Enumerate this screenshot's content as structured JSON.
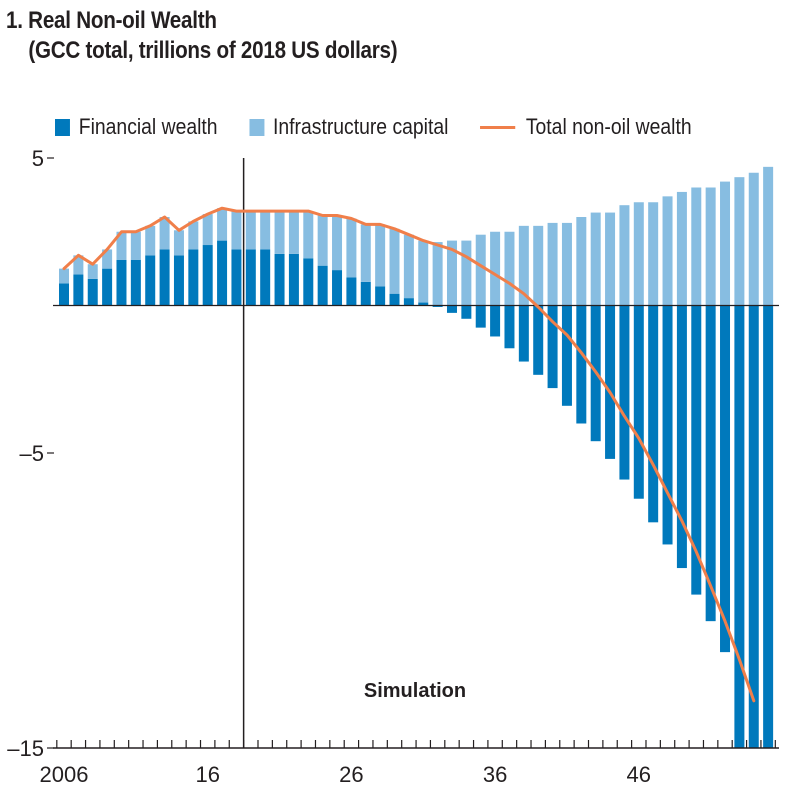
{
  "title": {
    "line1": "1. Real Non-oil Wealth",
    "line2": "(GCC total, trillions of 2018 US dollars)"
  },
  "legend": {
    "items": [
      {
        "label": "Financial wealth",
        "type": "box",
        "color": "#0079bc"
      },
      {
        "label": "Infrastructure capital",
        "type": "box",
        "color": "#87bde1"
      },
      {
        "label": "Total non-oil wealth",
        "type": "line",
        "color": "#f07f4a"
      }
    ]
  },
  "annotation": {
    "simulation_label": "Simulation",
    "simulation_start_year": 2018.5
  },
  "chart_data": {
    "type": "bar",
    "stacked": true,
    "title": "1. Real Non-oil Wealth (GCC total, trillions of 2018 US dollars)",
    "xlabel": "",
    "ylabel": "",
    "ylim": [
      -15,
      5
    ],
    "yticks": [
      5,
      0,
      -5,
      -15
    ],
    "ytick_labels": [
      "5",
      "",
      "–5",
      "–15"
    ],
    "xlim": [
      2006,
      2055
    ],
    "xtick_labels": [
      {
        "year": 2006,
        "label": "2006"
      },
      {
        "year": 2016,
        "label": "16"
      },
      {
        "year": 2026,
        "label": "26"
      },
      {
        "year": 2036,
        "label": "36"
      },
      {
        "year": 2046,
        "label": "46"
      }
    ],
    "grid": false,
    "legend_position": "top",
    "colors": {
      "financial": "#0079bc",
      "infrastructure": "#87bde1",
      "total": "#f07f4a",
      "axis": "#231f20"
    },
    "categories": [
      2006,
      2007,
      2008,
      2009,
      2010,
      2011,
      2012,
      2013,
      2014,
      2015,
      2016,
      2017,
      2018,
      2019,
      2020,
      2021,
      2022,
      2023,
      2024,
      2025,
      2026,
      2027,
      2028,
      2029,
      2030,
      2031,
      2032,
      2033,
      2034,
      2035,
      2036,
      2037,
      2038,
      2039,
      2040,
      2041,
      2042,
      2043,
      2044,
      2045,
      2046,
      2047,
      2048,
      2049,
      2050,
      2051,
      2052,
      2053,
      2054,
      2055
    ],
    "series": [
      {
        "name": "Financial wealth",
        "kind": "bar",
        "values": [
          0.75,
          1.05,
          0.9,
          1.25,
          1.55,
          1.55,
          1.7,
          1.9,
          1.7,
          1.9,
          2.05,
          2.2,
          1.9,
          1.9,
          1.9,
          1.75,
          1.75,
          1.6,
          1.35,
          1.2,
          0.95,
          0.8,
          0.65,
          0.4,
          0.25,
          0.1,
          -0.05,
          -0.25,
          -0.45,
          -0.75,
          -1.05,
          -1.45,
          -1.9,
          -2.35,
          -2.8,
          -3.4,
          -4.0,
          -4.6,
          -5.2,
          -5.9,
          -6.55,
          -7.35,
          -8.1,
          -8.9,
          -9.8,
          -10.7,
          -11.75,
          -15.0,
          -15.0,
          -15.0
        ]
      },
      {
        "name": "Infrastructure capital",
        "kind": "bar",
        "values": [
          0.5,
          0.65,
          0.5,
          0.65,
          0.95,
          0.95,
          1.0,
          1.1,
          0.85,
          0.95,
          1.05,
          1.1,
          1.3,
          1.3,
          1.3,
          1.45,
          1.45,
          1.6,
          1.7,
          1.85,
          2.0,
          1.95,
          2.1,
          2.2,
          2.15,
          2.1,
          2.15,
          2.2,
          2.2,
          2.4,
          2.5,
          2.5,
          2.7,
          2.7,
          2.8,
          2.8,
          3.0,
          3.15,
          3.15,
          3.4,
          3.5,
          3.5,
          3.7,
          3.85,
          4.0,
          4.0,
          4.2,
          4.35,
          4.5,
          4.7
        ]
      },
      {
        "name": "Total non-oil wealth",
        "kind": "line",
        "values": [
          1.25,
          1.7,
          1.4,
          1.9,
          2.5,
          2.5,
          2.7,
          3.0,
          2.55,
          2.85,
          3.1,
          3.3,
          3.2,
          3.2,
          3.2,
          3.2,
          3.2,
          3.2,
          3.05,
          3.05,
          2.95,
          2.75,
          2.75,
          2.6,
          2.4,
          2.2,
          2.05,
          1.9,
          1.65,
          1.35,
          1.05,
          0.75,
          0.4,
          -0.05,
          -0.55,
          -1.0,
          -1.6,
          -2.25,
          -2.95,
          -3.75,
          -4.5,
          -5.4,
          -6.35,
          -7.3,
          -8.35,
          -9.5,
          -10.7,
          -12.0,
          -13.4,
          null
        ]
      }
    ]
  }
}
